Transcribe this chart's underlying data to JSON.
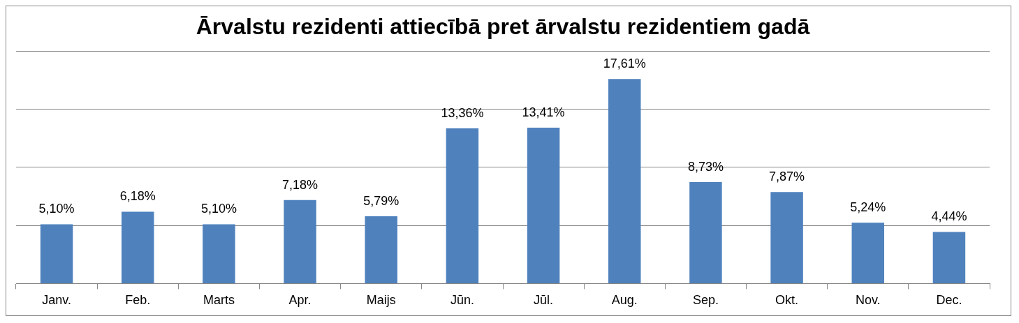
{
  "chart_data": {
    "type": "bar",
    "title": "Ārvalstu rezidenti attiecībā pret ārvalstu rezidentiem gadā",
    "categories": [
      "Janv.",
      "Feb.",
      "Marts",
      "Apr.",
      "Maijs",
      "Jūn.",
      "Jūl.",
      "Aug.",
      "Sep.",
      "Okt.",
      "Nov.",
      "Dec."
    ],
    "values": [
      5.1,
      6.18,
      5.1,
      7.18,
      5.79,
      13.36,
      13.41,
      17.61,
      8.73,
      7.87,
      5.24,
      4.44
    ],
    "value_labels": [
      "5,10%",
      "6,18%",
      "5,10%",
      "7,18%",
      "5,79%",
      "13,36%",
      "13,41%",
      "17,61%",
      "8,73%",
      "7,87%",
      "5,24%",
      "4,44%"
    ],
    "color": "#4f81bd",
    "ylim": [
      0,
      20
    ],
    "yticks": [
      {
        "value": 0,
        "label": null
      },
      {
        "value": 5,
        "label": null
      },
      {
        "value": 10,
        "label": null
      },
      {
        "value": 15,
        "label": null
      },
      {
        "value": 20,
        "label": null
      }
    ],
    "grid": "y",
    "tick_labels": "x"
  }
}
